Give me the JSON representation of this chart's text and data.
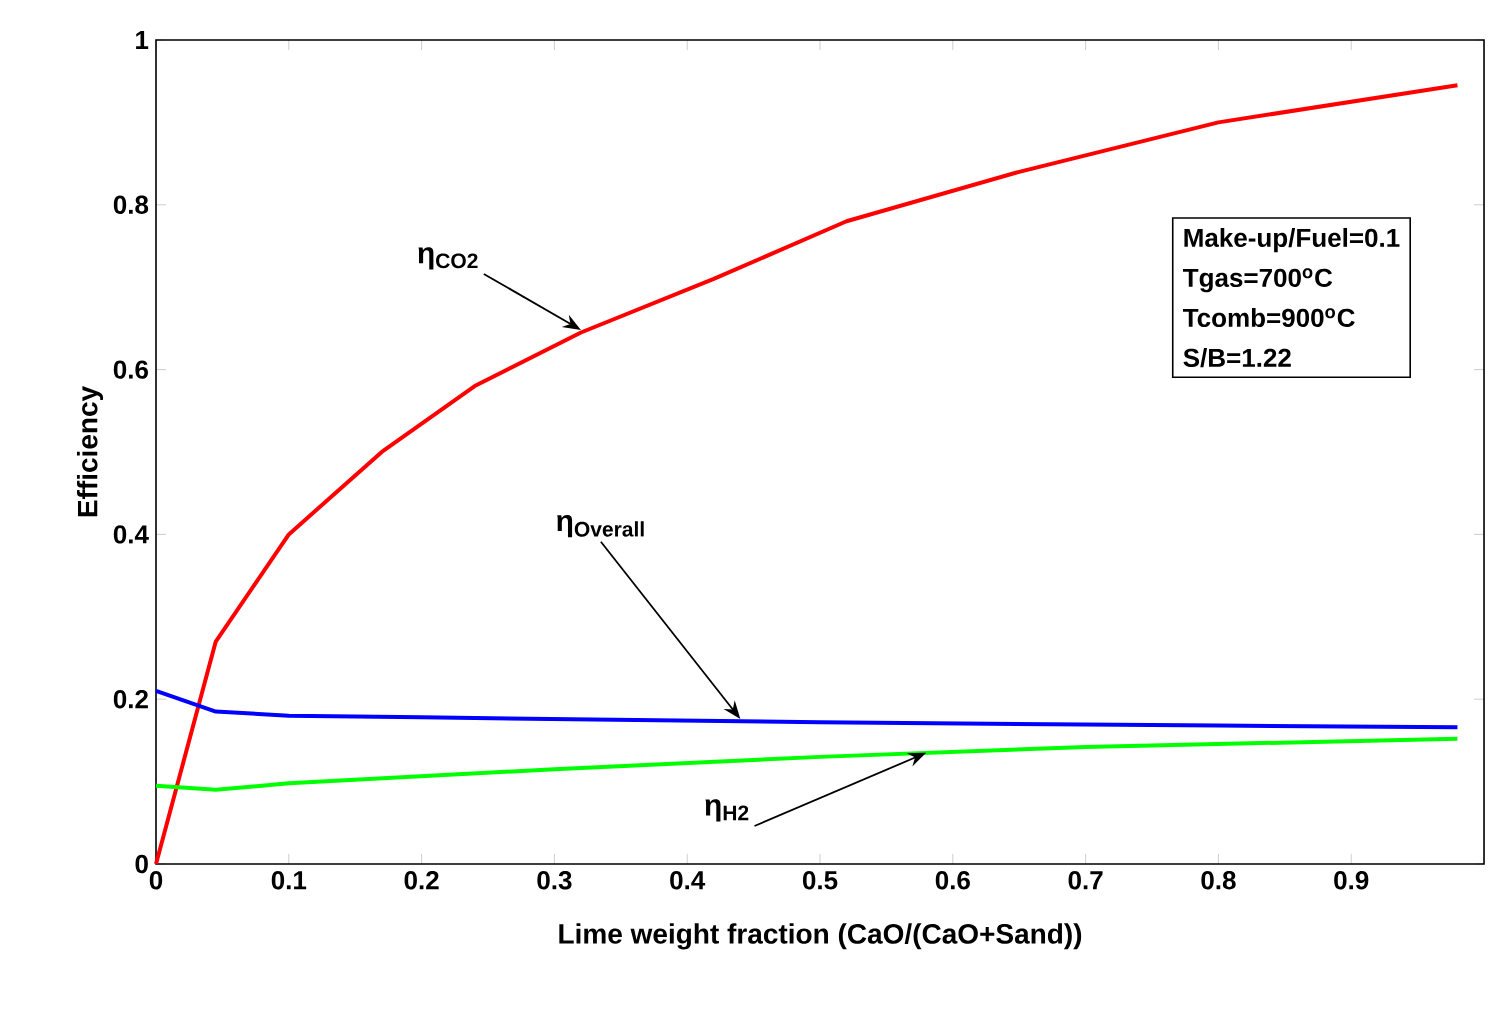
{
  "chart_data": {
    "type": "line",
    "xlabel": "Lime weight fraction (CaO/(CaO+Sand))",
    "ylabel": "Efficiency",
    "xlim": [
      0,
      1
    ],
    "ylim": [
      0,
      1
    ],
    "xticks": [
      0,
      0.1,
      0.2,
      0.3,
      0.4,
      0.5,
      0.6,
      0.7,
      0.8,
      0.9
    ],
    "yticks": [
      0,
      0.2,
      0.4,
      0.6,
      0.8,
      1
    ],
    "grid": false,
    "marker": "none",
    "line_style": "solid",
    "series": [
      {
        "color": "#ff0000",
        "x": [
          0,
          0.045,
          0.1,
          0.17,
          0.24,
          0.32,
          0.42,
          0.52,
          0.65,
          0.8,
          0.98
        ],
        "values": [
          0,
          0.27,
          0.4,
          0.5,
          0.58,
          0.645,
          0.71,
          0.78,
          0.84,
          0.9,
          0.945
        ]
      },
      {
        "color": "#0000ff",
        "x": [
          0,
          0.045,
          0.1,
          0.2,
          0.5,
          0.8,
          0.98
        ],
        "values": [
          0.21,
          0.185,
          0.18,
          0.178,
          0.172,
          0.168,
          0.166
        ]
      },
      {
        "color": "#00ff00",
        "x": [
          0,
          0.045,
          0.1,
          0.3,
          0.5,
          0.7,
          0.98
        ],
        "values": [
          0.095,
          0.09,
          0.098,
          0.115,
          0.13,
          0.142,
          0.152
        ]
      }
    ],
    "annotations": [
      {
        "text": "η$_{CO2}$",
        "x": 0.32,
        "y": 0.648
      },
      {
        "text": "η$_{Overall}$",
        "x": 0.44,
        "y": 0.176
      },
      {
        "text": "η$_{H2}$",
        "x": 0.58,
        "y": 0.135
      },
      "Make-up/Fuel=0.1",
      "Tgas=700$^{o}$C",
      "Tcomb=900$^{o}$C",
      "S/B=1.22"
    ]
  }
}
